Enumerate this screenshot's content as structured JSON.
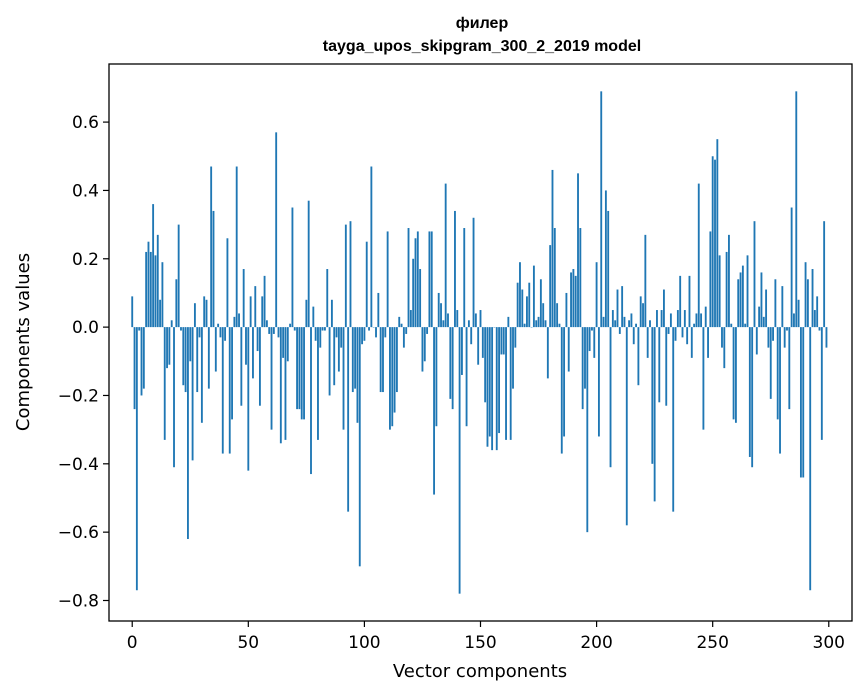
{
  "chart_data": {
    "type": "bar",
    "title": "филер",
    "subtitle": "tayga_upos_skipgram_300_2_2019 model",
    "xlabel": "Vector components",
    "ylabel": "Components values",
    "xlim": [
      -10,
      310
    ],
    "ylim": [
      -0.86,
      0.77
    ],
    "xticks": [
      0,
      50,
      100,
      150,
      200,
      250,
      300
    ],
    "yticks": [
      -0.8,
      -0.6,
      -0.4,
      -0.2,
      0.0,
      0.2,
      0.4,
      0.6
    ],
    "ytick_labels": [
      "−0.8",
      "−0.6",
      "−0.4",
      "−0.2",
      "0.0",
      "0.2",
      "0.4",
      "0.6"
    ],
    "bar_color": "#1f77b4",
    "grid": false,
    "values": [
      0.09,
      -0.24,
      -0.77,
      -0.01,
      -0.2,
      -0.18,
      0.22,
      0.25,
      0.22,
      0.36,
      0.21,
      0.27,
      0.08,
      0.19,
      -0.33,
      -0.12,
      -0.11,
      0.02,
      -0.41,
      0.14,
      0.3,
      -0.01,
      -0.17,
      -0.19,
      -0.62,
      -0.1,
      -0.39,
      0.07,
      -0.19,
      -0.03,
      -0.28,
      0.09,
      0.08,
      -0.18,
      0.47,
      0.34,
      -0.13,
      0.01,
      -0.03,
      -0.37,
      -0.04,
      0.26,
      -0.37,
      -0.27,
      0.03,
      0.47,
      0.04,
      -0.23,
      0.17,
      -0.11,
      -0.42,
      0.09,
      -0.15,
      0.12,
      -0.07,
      -0.23,
      0.09,
      0.15,
      0.02,
      -0.02,
      -0.3,
      -0.02,
      0.57,
      -0.03,
      -0.34,
      -0.09,
      -0.33,
      -0.1,
      0.01,
      0.35,
      -0.01,
      -0.24,
      -0.24,
      -0.27,
      -0.27,
      0.08,
      0.37,
      -0.43,
      0.06,
      -0.04,
      -0.33,
      -0.06,
      -0.01,
      -0.01,
      0.17,
      -0.2,
      0.08,
      -0.17,
      -0.03,
      -0.13,
      -0.06,
      -0.3,
      0.3,
      -0.54,
      0.31,
      -0.19,
      -0.18,
      -0.28,
      -0.7,
      -0.05,
      -0.04,
      0.25,
      -0.01,
      0.47,
      0.0,
      -0.03,
      0.1,
      -0.19,
      -0.19,
      -0.03,
      0.28,
      -0.3,
      -0.29,
      -0.25,
      -0.19,
      0.03,
      0.01,
      -0.06,
      -0.02,
      0.29,
      0.05,
      0.2,
      0.26,
      0.28,
      0.17,
      -0.13,
      -0.1,
      -0.02,
      0.28,
      0.28,
      -0.49,
      -0.29,
      0.1,
      0.07,
      0.02,
      0.42,
      0.04,
      -0.21,
      -0.24,
      0.34,
      0.05,
      -0.78,
      -0.14,
      0.29,
      -0.29,
      0.02,
      -0.05,
      0.32,
      0.04,
      -0.11,
      0.05,
      -0.09,
      -0.22,
      -0.35,
      -0.32,
      -0.36,
      0.0,
      -0.36,
      -0.31,
      -0.08,
      -0.08,
      -0.33,
      0.03,
      -0.33,
      -0.18,
      -0.06,
      0.13,
      0.19,
      0.11,
      0.01,
      0.09,
      0.13,
      0.0,
      0.18,
      0.02,
      0.03,
      0.14,
      0.07,
      0.02,
      -0.15,
      0.24,
      0.46,
      0.29,
      0.07,
      0.01,
      -0.37,
      -0.32,
      0.1,
      -0.13,
      0.16,
      0.17,
      0.15,
      0.45,
      0.29,
      -0.24,
      -0.18,
      -0.6,
      -0.07,
      -0.01,
      -0.09,
      0.19,
      -0.32,
      0.69,
      0.03,
      0.4,
      0.34,
      -0.41,
      0.05,
      0.02,
      0.11,
      -0.02,
      0.12,
      0.03,
      -0.58,
      0.02,
      0.04,
      -0.05,
      0.01,
      -0.17,
      0.09,
      0.07,
      0.27,
      -0.09,
      0.02,
      -0.4,
      -0.51,
      0.05,
      -0.22,
      0.05,
      0.11,
      -0.23,
      -0.02,
      0.04,
      -0.54,
      -0.04,
      0.05,
      0.15,
      -0.03,
      0.05,
      -0.05,
      0.15,
      -0.09,
      0.01,
      0.04,
      0.42,
      0.04,
      -0.3,
      0.06,
      -0.09,
      0.28,
      0.5,
      0.49,
      0.55,
      0.21,
      -0.06,
      -0.12,
      0.22,
      0.27,
      0.01,
      -0.27,
      -0.28,
      0.14,
      0.16,
      0.18,
      0.01,
      0.21,
      -0.38,
      -0.41,
      0.31,
      -0.08,
      0.06,
      0.16,
      0.03,
      0.11,
      -0.06,
      -0.21,
      -0.04,
      0.14,
      -0.27,
      -0.37,
      0.12,
      -0.06,
      -0.01,
      -0.24,
      0.35,
      0.04,
      0.69,
      0.08,
      -0.44,
      -0.44,
      0.19,
      0.14,
      -0.77,
      0.17,
      0.05,
      0.09,
      -0.01,
      -0.33,
      0.31,
      -0.06
    ]
  }
}
